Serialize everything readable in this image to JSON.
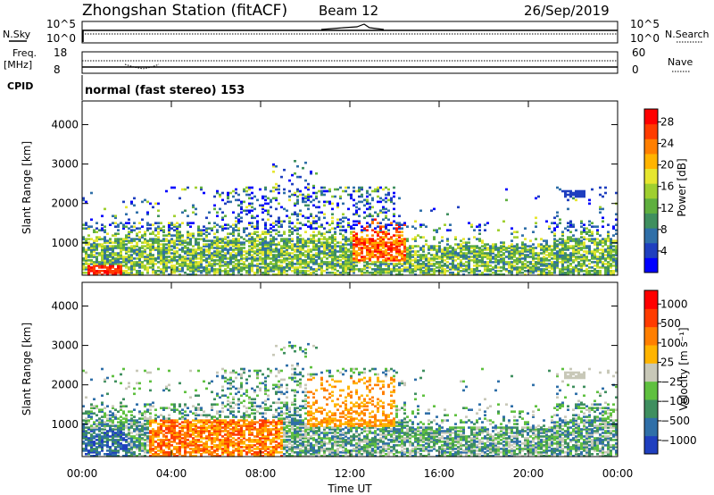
{
  "header": {
    "station": "Zhongshan Station (fitACF)",
    "beam": "Beam 12",
    "date": "26/Sep/2019"
  },
  "strip_labels": {
    "nsky": "N.Sky",
    "nsearch": "N.Search",
    "freq": "Freq.",
    "freq_unit": "[MHz]",
    "nave": "Nave",
    "cpid": "CPID",
    "mode_text": "normal (fast stereo) 153",
    "noise_top": "10^5",
    "noise_bottom": "10^0",
    "freq_top": "18",
    "freq_bottom": "8",
    "nave_top": "60",
    "nave_bottom": "0"
  },
  "chart_data": [
    {
      "type": "heatmap",
      "panel": "power",
      "ylabel": "Slant Range [km]",
      "xlabel": "Time UT",
      "x_ticks": [
        "00:00",
        "04:00",
        "08:00",
        "12:00",
        "16:00",
        "20:00",
        "00:00"
      ],
      "y_ticks": [
        "1000",
        "2000",
        "3000",
        "4000"
      ],
      "ylim": [
        180,
        4600
      ],
      "xlim_hours": [
        0,
        24
      ],
      "colorbar": {
        "label": "Power [dB]",
        "ticks": [
          "4",
          "8",
          "12",
          "16",
          "20",
          "24",
          "28"
        ],
        "colors": [
          "#0000ff",
          "#1f3fbf",
          "#2f6fa8",
          "#3f8f5f",
          "#5faf3f",
          "#9fcf2f",
          "#e6e62f",
          "#ffb400",
          "#ff7f00",
          "#ff3c00",
          "#ff0000"
        ]
      }
    },
    {
      "type": "heatmap",
      "panel": "velocity",
      "ylabel": "Slant Range [km]",
      "xlabel": "Time UT",
      "x_ticks": [
        "00:00",
        "04:00",
        "08:00",
        "12:00",
        "16:00",
        "20:00",
        "00:00"
      ],
      "y_ticks": [
        "1000",
        "2000",
        "3000",
        "4000"
      ],
      "ylim": [
        180,
        4600
      ],
      "xlim_hours": [
        0,
        24
      ],
      "colorbar": {
        "label": "Velocity [m s⁻¹]",
        "ticks": [
          "1000",
          "500",
          "100",
          "25",
          "−25",
          "−100",
          "−500",
          "−1000"
        ],
        "colors": [
          "#1f3fbf",
          "#2f6fa8",
          "#3f8f5f",
          "#5fc03f",
          "#c8c8b8",
          "#ffb400",
          "#ff7f00",
          "#ff3c00",
          "#ff0000"
        ]
      }
    }
  ]
}
